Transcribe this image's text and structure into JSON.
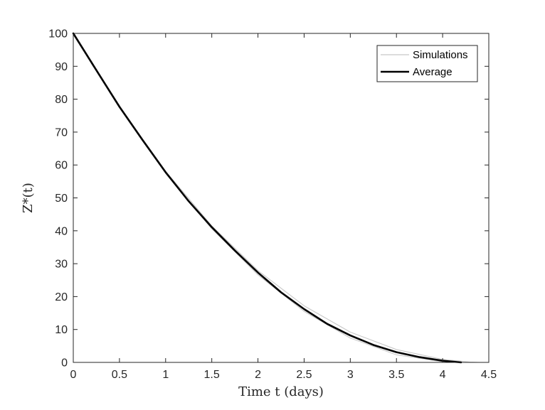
{
  "chart_data": {
    "type": "line",
    "title": "",
    "xlabel": "Time t (days)",
    "ylabel": "Z*(t)",
    "xlim": [
      0,
      4.5
    ],
    "ylim": [
      0,
      100
    ],
    "xticks": [
      "0",
      "0.5",
      "1",
      "1.5",
      "2",
      "2.5",
      "3",
      "3.5",
      "4",
      "4.5"
    ],
    "yticks": [
      "0",
      "10",
      "20",
      "30",
      "40",
      "50",
      "60",
      "70",
      "80",
      "90",
      "100"
    ],
    "grid": false,
    "legend_position": "top-right",
    "colors": {
      "simulations": "#c8c8c8",
      "average": "#000000",
      "axes": "#262626"
    },
    "series": [
      {
        "name": "Simulations",
        "points": [
          [
            0,
            100
          ],
          [
            0.5,
            77.5
          ],
          [
            1,
            57.5
          ],
          [
            1.5,
            40.6
          ],
          [
            2,
            26.6
          ],
          [
            2.5,
            15.5
          ],
          [
            3,
            7.4
          ],
          [
            3.5,
            2.3
          ],
          [
            4,
            0.2
          ],
          [
            4.1,
            0.0
          ]
        ]
      },
      {
        "name": "Simulations",
        "points": [
          [
            0,
            100
          ],
          [
            0.5,
            77.8
          ],
          [
            1,
            58.1
          ],
          [
            1.5,
            41.5
          ],
          [
            2,
            27.9
          ],
          [
            2.5,
            17.2
          ],
          [
            3,
            9.2
          ],
          [
            3.5,
            3.9
          ],
          [
            4,
            0.9
          ],
          [
            4.3,
            0.1
          ],
          [
            4.4,
            0.0
          ]
        ]
      },
      {
        "name": "Average",
        "points": [
          [
            0,
            100
          ],
          [
            0.25,
            88.8
          ],
          [
            0.5,
            77.7
          ],
          [
            0.75,
            67.6
          ],
          [
            1,
            57.8
          ],
          [
            1.25,
            49.0
          ],
          [
            1.5,
            41.1
          ],
          [
            1.75,
            34.0
          ],
          [
            2,
            27.3
          ],
          [
            2.25,
            21.3
          ],
          [
            2.5,
            16.2
          ],
          [
            2.75,
            11.7
          ],
          [
            3,
            8.2
          ],
          [
            3.25,
            5.3
          ],
          [
            3.5,
            3.1
          ],
          [
            3.75,
            1.6
          ],
          [
            4,
            0.5
          ],
          [
            4.2,
            0.0
          ]
        ]
      }
    ]
  }
}
